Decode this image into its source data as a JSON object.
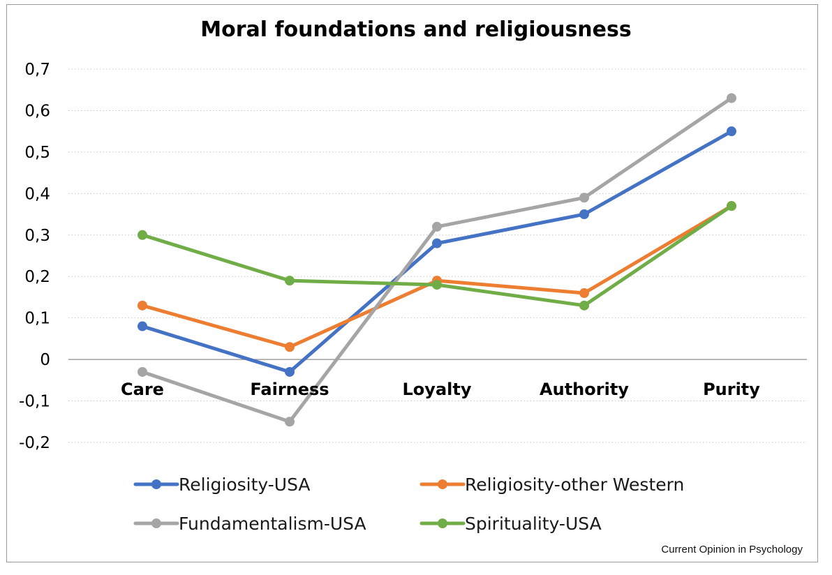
{
  "chart_data": {
    "type": "line",
    "title": "Moral foundations and religiousness",
    "categories": [
      "Care",
      "Fairness",
      "Loyalty",
      "Authority",
      "Purity"
    ],
    "y_ticks": [
      "-0,2",
      "-0,1",
      "0",
      "0,1",
      "0,2",
      "0,3",
      "0,4",
      "0,5",
      "0,6",
      "0,7"
    ],
    "ylim": [
      -0.2,
      0.7
    ],
    "grid": "horizontal dotted",
    "legend_position": "bottom",
    "series": [
      {
        "name": "Religiosity-USA",
        "color": "#4472C4",
        "values": [
          0.08,
          -0.03,
          0.28,
          0.35,
          0.55
        ]
      },
      {
        "name": "Religiosity-other Western",
        "color": "#ED7D31",
        "values": [
          0.13,
          0.03,
          0.19,
          0.16,
          0.37
        ]
      },
      {
        "name": "Fundamentalism-USA",
        "color": "#A5A5A5",
        "values": [
          -0.03,
          -0.15,
          0.32,
          0.39,
          0.63
        ]
      },
      {
        "name": "Spirituality-USA",
        "color": "#70AD47",
        "values": [
          0.3,
          0.19,
          0.18,
          0.13,
          0.37
        ]
      }
    ],
    "source_note": "Current Opinion in Psychology"
  }
}
